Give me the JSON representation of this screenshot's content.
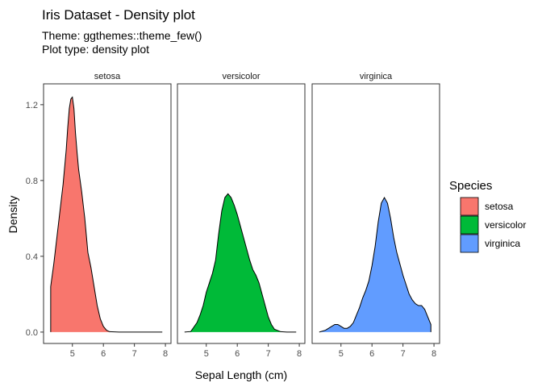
{
  "title": "Iris Dataset - Density plot",
  "subtitle_lines": [
    "Theme: ggthemes::theme_few()",
    "Plot type: density plot"
  ],
  "chart_data": {
    "type": "area",
    "xlabel": "Sepal Length (cm)",
    "ylabel": "Density",
    "xlim": [
      4.2,
      8.05
    ],
    "ylim": [
      -0.06,
      1.31
    ],
    "x_ticks": [
      5,
      6,
      7,
      8
    ],
    "y_ticks": [
      0.0,
      0.4,
      0.8,
      1.2
    ],
    "y_tick_labels": [
      "0.0",
      "0.4",
      "0.8",
      "1.2"
    ],
    "grid": false,
    "legend": {
      "title": "Species",
      "position": "right",
      "entries": [
        "setosa",
        "versicolor",
        "virginica"
      ]
    },
    "colors": [
      "#F8766D",
      "#00BA38",
      "#619CFF"
    ],
    "series": [
      {
        "name": "setosa",
        "x": [
          4.3,
          4.4,
          4.5,
          4.6,
          4.7,
          4.8,
          4.85,
          4.9,
          4.95,
          5.0,
          5.05,
          5.1,
          5.15,
          5.2,
          5.3,
          5.4,
          5.5,
          5.6,
          5.7,
          5.8,
          5.9,
          6.0,
          6.1,
          6.2,
          6.5,
          7.0,
          7.5,
          7.9
        ],
        "y": [
          0.24,
          0.36,
          0.5,
          0.64,
          0.78,
          0.96,
          1.08,
          1.18,
          1.23,
          1.24,
          1.18,
          1.05,
          0.95,
          0.86,
          0.74,
          0.6,
          0.42,
          0.34,
          0.24,
          0.14,
          0.07,
          0.03,
          0.01,
          0.002,
          0.0,
          0.0,
          0.0,
          0.0
        ]
      },
      {
        "name": "versicolor",
        "x": [
          4.3,
          4.5,
          4.7,
          4.8,
          4.9,
          5.0,
          5.1,
          5.2,
          5.3,
          5.4,
          5.5,
          5.6,
          5.7,
          5.8,
          5.9,
          6.0,
          6.1,
          6.2,
          6.3,
          6.4,
          6.5,
          6.6,
          6.7,
          6.8,
          6.9,
          7.0,
          7.1,
          7.2,
          7.4,
          7.6,
          7.9
        ],
        "y": [
          0.0,
          0.003,
          0.05,
          0.09,
          0.14,
          0.21,
          0.26,
          0.31,
          0.38,
          0.52,
          0.64,
          0.71,
          0.73,
          0.71,
          0.67,
          0.62,
          0.56,
          0.5,
          0.44,
          0.38,
          0.33,
          0.3,
          0.26,
          0.2,
          0.14,
          0.08,
          0.04,
          0.015,
          0.002,
          0.0,
          0.0
        ]
      },
      {
        "name": "virginica",
        "x": [
          4.3,
          4.5,
          4.6,
          4.7,
          4.8,
          4.9,
          5.0,
          5.1,
          5.2,
          5.3,
          5.4,
          5.5,
          5.6,
          5.7,
          5.8,
          5.9,
          6.0,
          6.1,
          6.2,
          6.3,
          6.4,
          6.5,
          6.6,
          6.7,
          6.8,
          6.9,
          7.0,
          7.1,
          7.2,
          7.3,
          7.4,
          7.5,
          7.6,
          7.7,
          7.8,
          7.9
        ],
        "y": [
          0.0,
          0.01,
          0.02,
          0.03,
          0.04,
          0.04,
          0.03,
          0.02,
          0.02,
          0.03,
          0.05,
          0.09,
          0.13,
          0.18,
          0.22,
          0.27,
          0.35,
          0.45,
          0.58,
          0.68,
          0.71,
          0.68,
          0.6,
          0.5,
          0.42,
          0.36,
          0.3,
          0.25,
          0.2,
          0.17,
          0.15,
          0.14,
          0.14,
          0.12,
          0.08,
          0.04
        ]
      }
    ]
  }
}
